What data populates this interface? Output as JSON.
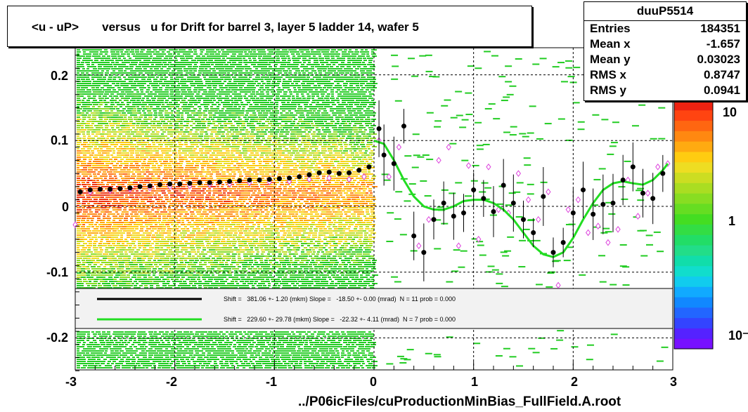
{
  "title": "<u - uP>       versus   u for Drift for barrel 3, layer 5 ladder 14, wafer 5",
  "footer": "../P06icFiles/cuProductionMinBias_FullField.A.root",
  "stats": {
    "name": "duuP5514",
    "rows": [
      {
        "label": "Entries",
        "value": "184351"
      },
      {
        "label": "Mean x",
        "value": "-1.657"
      },
      {
        "label": "Mean y",
        "value": "0.03023"
      },
      {
        "label": "RMS x",
        "value": "0.8747"
      },
      {
        "label": "RMS y",
        "value": "0.0941"
      }
    ]
  },
  "legend": {
    "line1": "Shift =   381.06 +- 1.20 (mkm) Slope =   -18.50 +- 0.00 (mrad)  N = 11 prob = 0.000",
    "line2": "Shift =   229.60 +- 29.78 (mkm) Slope =   -22.32 +- 4.11 (mrad)  N = 7 prob = 0.000",
    "line1_color": "#000000",
    "line2_color": "#22dd22"
  },
  "colors": {
    "background": "#ffffff",
    "band_low": "#22cc22",
    "band_high": "#ee3311",
    "fit_curve": "#22dd22",
    "profile_black": "#000000",
    "profile_magenta": "#dd44dd"
  },
  "chart_data": {
    "type": "heatmap",
    "xlim": [
      -3,
      3
    ],
    "ylim": [
      -0.25,
      0.25
    ],
    "xticks": [
      "-3",
      "-2",
      "-1",
      "0",
      "1",
      "2",
      "3"
    ],
    "yticks": [
      "0.2",
      "0.1",
      "0",
      "-0.1",
      "-0.2"
    ],
    "colorbar_ticks": [
      "10",
      "1",
      "10⁻¹"
    ],
    "grid": true,
    "profile_black": {
      "x": [
        -2.95,
        -2.85,
        -2.75,
        -2.65,
        -2.55,
        -2.45,
        -2.35,
        -2.25,
        -2.15,
        -2.05,
        -1.95,
        -1.85,
        -1.75,
        -1.65,
        -1.55,
        -1.45,
        -1.35,
        -1.25,
        -1.15,
        -1.05,
        -0.95,
        -0.85,
        -0.75,
        -0.65,
        -0.55,
        -0.45,
        -0.35,
        -0.25,
        -0.15,
        -0.05,
        0.05,
        0.1,
        0.2,
        0.3,
        0.4,
        0.5,
        0.6,
        0.7,
        0.8,
        0.9,
        1.0,
        1.1,
        1.2,
        1.3,
        1.4,
        1.5,
        1.6,
        1.7,
        1.8,
        1.9,
        2.0,
        2.1,
        2.2,
        2.3,
        2.4,
        2.5,
        2.6,
        2.7,
        2.8,
        2.9
      ],
      "y": [
        0.022,
        0.025,
        0.026,
        0.026,
        0.027,
        0.028,
        0.03,
        0.031,
        0.033,
        0.034,
        0.034,
        0.035,
        0.036,
        0.036,
        0.037,
        0.038,
        0.039,
        0.04,
        0.04,
        0.041,
        0.042,
        0.043,
        0.045,
        0.048,
        0.051,
        0.052,
        0.05,
        0.051,
        0.055,
        0.06,
        0.118,
        0.078,
        0.065,
        0.122,
        -0.045,
        -0.07,
        -0.02,
        0.005,
        -0.015,
        -0.01,
        0.025,
        0.012,
        -0.008,
        0.032,
        0.005,
        -0.02,
        -0.04,
        0.015,
        -0.07,
        -0.055,
        -0.01,
        0.025,
        -0.012,
        0.003,
        0.005,
        0.04,
        0.06,
        0.02,
        0.012,
        0.05
      ]
    },
    "profile_magenta": {
      "x": [
        -3.0,
        -2.85,
        -2.65,
        -2.45,
        -2.25,
        -2.05,
        -1.85,
        -1.65,
        -1.45,
        -1.25,
        -1.05,
        -0.85,
        -0.65,
        -0.45,
        -0.25,
        -0.1,
        0.05,
        0.15,
        0.25,
        0.45,
        0.55,
        0.65,
        0.75,
        0.85,
        0.95,
        1.05,
        1.15,
        1.25,
        1.35,
        1.45,
        1.55,
        1.65,
        1.75,
        1.85,
        1.95,
        2.05,
        2.15,
        2.25,
        2.35,
        2.45,
        2.55,
        2.65,
        2.75,
        2.85,
        2.95
      ],
      "y": [
        -0.028,
        0.022,
        0.024,
        0.026,
        0.028,
        0.03,
        0.031,
        0.033,
        0.034,
        0.036,
        0.037,
        0.038,
        0.041,
        0.043,
        0.041,
        0.045,
        0.1,
        0.045,
        0.09,
        -0.06,
        -0.02,
        0.07,
        0.09,
        -0.06,
        0.062,
        -0.05,
        0.06,
        -0.005,
        -0.01,
        0.05,
        0.01,
        -0.02,
        0.022,
        -0.12,
        -0.005,
        0.01,
        -0.04,
        -0.03,
        -0.055,
        -0.035,
        0.04,
        -0.015,
        0.02,
        0.06,
        0.065
      ]
    },
    "fit_curve": {
      "x": [
        0.0,
        0.1,
        0.2,
        0.3,
        0.4,
        0.5,
        0.6,
        0.7,
        0.8,
        0.9,
        1.0,
        1.1,
        1.2,
        1.3,
        1.4,
        1.5,
        1.6,
        1.7,
        1.8,
        1.9,
        2.0,
        2.1,
        2.2,
        2.3,
        2.4,
        2.5,
        2.6,
        2.7,
        2.8,
        2.9,
        2.95
      ],
      "y": [
        0.1,
        0.095,
        0.07,
        0.04,
        0.015,
        0.0,
        -0.005,
        -0.005,
        0.0,
        0.008,
        0.01,
        0.01,
        0.005,
        -0.005,
        -0.02,
        -0.04,
        -0.06,
        -0.073,
        -0.077,
        -0.07,
        -0.048,
        -0.02,
        0.005,
        0.025,
        0.035,
        0.038,
        0.035,
        0.033,
        0.04,
        0.055,
        0.065
      ]
    }
  }
}
